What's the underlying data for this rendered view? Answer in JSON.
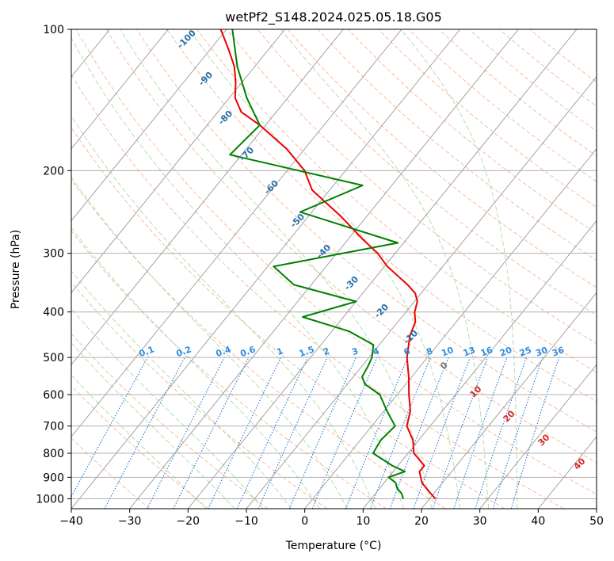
{
  "chart_data": {
    "type": "line",
    "title": "wetPf2_S148.2024.025.05.18.G05",
    "xlabel": "Temperature (°C)",
    "ylabel": "Pressure (hPa)",
    "xlim": [
      -40,
      50
    ],
    "ylim": [
      1050,
      100
    ],
    "y_scale": "log",
    "x_ticks": [
      -40,
      -30,
      -20,
      -10,
      0,
      10,
      20,
      30,
      40,
      50
    ],
    "y_ticks": [
      100,
      200,
      300,
      400,
      500,
      600,
      700,
      800,
      900,
      1000
    ],
    "grid": true,
    "skew": true,
    "colors": {
      "temperature": "#ee0000",
      "dewpoint": "#008000",
      "dry_adiabat": "#f4a582",
      "moist_adiabat": "#a6d3a0",
      "mixing_ratio": "#1f77d4",
      "isotherm": "#999999",
      "isotherm_label": "#2a6fa8"
    },
    "isotherm_labels": [
      "-100",
      "-90",
      "-80",
      "-70",
      "-60",
      "-50",
      "-40",
      "-30",
      "-20",
      "-10",
      "0",
      "10",
      "20",
      "30",
      "40"
    ],
    "isotherm_label_values": [
      -100,
      -90,
      -80,
      -70,
      -60,
      -50,
      -40,
      -30,
      -20,
      -10,
      0,
      10,
      20,
      30,
      40
    ],
    "mixing_ratio_labels": [
      "0.1",
      "0.2",
      "0.4",
      "0.6",
      "1",
      "1.5",
      "2",
      "3",
      "4",
      "6",
      "8",
      "10",
      "13",
      "16",
      "20",
      "25",
      "30",
      "36"
    ],
    "mixing_ratio_values": [
      0.1,
      0.2,
      0.4,
      0.6,
      1,
      1.5,
      2,
      3,
      4,
      6,
      8,
      10,
      13,
      16,
      20,
      25,
      30,
      36
    ],
    "series": [
      {
        "key": "temperature",
        "pressure": [
          1000,
          975,
          950,
          925,
          900,
          875,
          850,
          800,
          750,
          700,
          650,
          600,
          550,
          500,
          450,
          420,
          400,
          380,
          365,
          350,
          320,
          300,
          280,
          250,
          220,
          200,
          180,
          160,
          150,
          140,
          130,
          120,
          110,
          100
        ],
        "values": [
          21.0,
          19.5,
          18.0,
          16.5,
          15.5,
          14.5,
          14.5,
          11.0,
          9.0,
          6.0,
          4.5,
          2.0,
          -0.5,
          -3.5,
          -6.0,
          -7.0,
          -8.5,
          -9.5,
          -11.0,
          -13.5,
          -19.5,
          -23.0,
          -27.5,
          -34.5,
          -43.0,
          -47.0,
          -53.0,
          -61.0,
          -66.0,
          -69.0,
          -71.0,
          -73.5,
          -77.0,
          -81.0
        ]
      },
      {
        "key": "dewpoint",
        "pressure": [
          1000,
          975,
          950,
          925,
          900,
          875,
          850,
          800,
          750,
          700,
          650,
          600,
          570,
          550,
          520,
          500,
          470,
          440,
          410,
          380,
          350,
          320,
          285,
          245,
          215,
          185,
          160,
          140,
          120,
          100
        ],
        "values": [
          15.5,
          14.5,
          13.0,
          12.0,
          10.0,
          12.0,
          9.0,
          4.0,
          3.5,
          4.0,
          0.5,
          -3.0,
          -7.0,
          -8.5,
          -9.0,
          -9.5,
          -11.0,
          -17.0,
          -27.0,
          -20.0,
          -33.0,
          -39.0,
          -21.0,
          -42.0,
          -35.0,
          -62.0,
          -61.0,
          -67.0,
          -73.0,
          -79.0
        ]
      }
    ]
  }
}
